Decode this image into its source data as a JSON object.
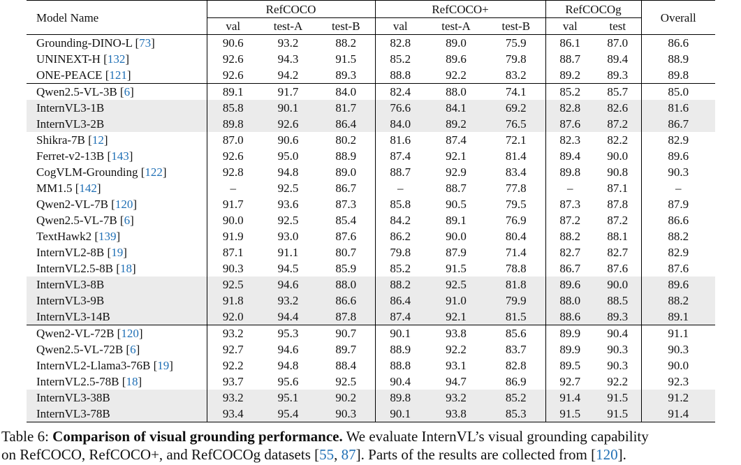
{
  "table": {
    "header": {
      "model_name": "Model Name",
      "groups": [
        "RefCOCO",
        "RefCOCO+",
        "RefCOCOg"
      ],
      "overall": "Overall",
      "subcols": [
        "val",
        "test-A",
        "test-B",
        "val",
        "test-A",
        "test-B",
        "val",
        "test"
      ]
    },
    "rows": [
      {
        "name": "Grounding-DINO-L",
        "cite": "73",
        "vals": [
          "90.6",
          "93.2",
          "88.2",
          "82.8",
          "89.0",
          "75.9",
          "86.1",
          "87.0",
          "86.6"
        ]
      },
      {
        "name": "UNINEXT-H",
        "cite": "132",
        "vals": [
          "92.6",
          "94.3",
          "91.5",
          "85.2",
          "89.6",
          "79.8",
          "88.7",
          "89.4",
          "88.9"
        ]
      },
      {
        "name": "ONE-PEACE",
        "cite": "121",
        "vals": [
          "92.6",
          "94.2",
          "89.3",
          "88.8",
          "92.2",
          "83.2",
          "89.2",
          "89.3",
          "89.8"
        ]
      },
      {
        "name": "Qwen2.5-VL-3B",
        "cite": "6",
        "vals": [
          "89.1",
          "91.7",
          "84.0",
          "82.4",
          "88.0",
          "74.1",
          "85.2",
          "85.7",
          "85.0"
        ],
        "sep": true
      },
      {
        "name": "InternVL3-1B",
        "cite": "",
        "vals": [
          "85.8",
          "90.1",
          "81.7",
          "76.6",
          "84.1",
          "69.2",
          "82.8",
          "82.6",
          "81.6"
        ],
        "gray": true
      },
      {
        "name": "InternVL3-2B",
        "cite": "",
        "vals": [
          "89.8",
          "92.6",
          "86.4",
          "84.0",
          "89.2",
          "76.5",
          "87.6",
          "87.2",
          "86.7"
        ],
        "gray": true
      },
      {
        "name": "Shikra-7B",
        "cite": "12",
        "vals": [
          "87.0",
          "90.6",
          "80.2",
          "81.6",
          "87.4",
          "72.1",
          "82.3",
          "82.2",
          "82.9"
        ]
      },
      {
        "name": "Ferret-v2-13B",
        "cite": "143",
        "vals": [
          "92.6",
          "95.0",
          "88.9",
          "87.4",
          "92.1",
          "81.4",
          "89.4",
          "90.0",
          "89.6"
        ]
      },
      {
        "name": "CogVLM-Grounding",
        "cite": "122",
        "vals": [
          "92.8",
          "94.8",
          "89.0",
          "88.7",
          "92.9",
          "83.4",
          "89.8",
          "90.8",
          "90.3"
        ]
      },
      {
        "name": "MM1.5",
        "cite": "142",
        "vals": [
          "–",
          "92.5",
          "86.7",
          "–",
          "88.7",
          "77.8",
          "–",
          "87.1",
          "–"
        ]
      },
      {
        "name": "Qwen2-VL-7B",
        "cite": "120",
        "vals": [
          "91.7",
          "93.6",
          "87.3",
          "85.8",
          "90.5",
          "79.5",
          "87.3",
          "87.8",
          "87.9"
        ]
      },
      {
        "name": "Qwen2.5-VL-7B",
        "cite": "6",
        "vals": [
          "90.0",
          "92.5",
          "85.4",
          "84.2",
          "89.1",
          "76.9",
          "87.2",
          "87.2",
          "86.6"
        ]
      },
      {
        "name": "TextHawk2",
        "cite": "139",
        "vals": [
          "91.9",
          "93.0",
          "87.6",
          "86.2",
          "90.0",
          "80.4",
          "88.2",
          "88.1",
          "88.2"
        ]
      },
      {
        "name": "InternVL2-8B",
        "cite": "19",
        "vals": [
          "87.1",
          "91.1",
          "80.7",
          "79.8",
          "87.9",
          "71.4",
          "82.7",
          "82.7",
          "82.9"
        ]
      },
      {
        "name": "InternVL2.5-8B",
        "cite": "18",
        "vals": [
          "90.3",
          "94.5",
          "85.9",
          "85.2",
          "91.5",
          "78.8",
          "86.7",
          "87.6",
          "87.6"
        ]
      },
      {
        "name": "InternVL3-8B",
        "cite": "",
        "vals": [
          "92.5",
          "94.6",
          "88.0",
          "88.2",
          "92.5",
          "81.8",
          "89.6",
          "90.0",
          "89.6"
        ],
        "gray": true
      },
      {
        "name": "InternVL3-9B",
        "cite": "",
        "vals": [
          "91.8",
          "93.2",
          "86.6",
          "86.4",
          "91.0",
          "79.9",
          "88.0",
          "88.5",
          "88.2"
        ],
        "gray": true
      },
      {
        "name": "InternVL3-14B",
        "cite": "",
        "vals": [
          "92.0",
          "94.4",
          "87.8",
          "87.4",
          "92.1",
          "81.5",
          "88.6",
          "89.3",
          "89.1"
        ],
        "gray": true
      },
      {
        "name": "Qwen2-VL-72B",
        "cite": "120",
        "vals": [
          "93.2",
          "95.3",
          "90.7",
          "90.1",
          "93.8",
          "85.6",
          "89.9",
          "90.4",
          "91.1"
        ],
        "sep": true
      },
      {
        "name": "Qwen2.5-VL-72B",
        "cite": "6",
        "vals": [
          "92.7",
          "94.6",
          "89.7",
          "88.9",
          "92.2",
          "83.7",
          "89.9",
          "90.3",
          "90.3"
        ]
      },
      {
        "name": "InternVL2-Llama3-76B",
        "cite": "19",
        "vals": [
          "92.2",
          "94.8",
          "88.4",
          "88.8",
          "93.1",
          "82.8",
          "89.5",
          "90.3",
          "90.0"
        ]
      },
      {
        "name": "InternVL2.5-78B",
        "cite": "18",
        "vals": [
          "93.7",
          "95.6",
          "92.5",
          "90.4",
          "94.7",
          "86.9",
          "92.7",
          "92.2",
          "92.3"
        ]
      },
      {
        "name": "InternVL3-38B",
        "cite": "",
        "vals": [
          "93.2",
          "95.1",
          "90.2",
          "89.8",
          "93.2",
          "85.2",
          "91.4",
          "91.5",
          "91.2"
        ],
        "gray": true
      },
      {
        "name": "InternVL3-78B",
        "cite": "",
        "vals": [
          "93.4",
          "95.4",
          "90.3",
          "90.1",
          "93.8",
          "85.3",
          "91.5",
          "91.5",
          "91.4"
        ],
        "gray": true
      }
    ]
  },
  "caption": {
    "label": "Table 6: ",
    "bold": "Comparison of visual grounding performance.",
    "line1_rest": " We evaluate InternVL’s visual grounding capability",
    "line2_a": "on RefCOCO, RefCOCO+, and RefCOCOg datasets [",
    "cite_a": "55",
    "line2_b": ", ",
    "cite_b": "87",
    "line2_c": "]. Parts of the results are collected from [",
    "cite_c": "120",
    "line2_d": "]."
  }
}
